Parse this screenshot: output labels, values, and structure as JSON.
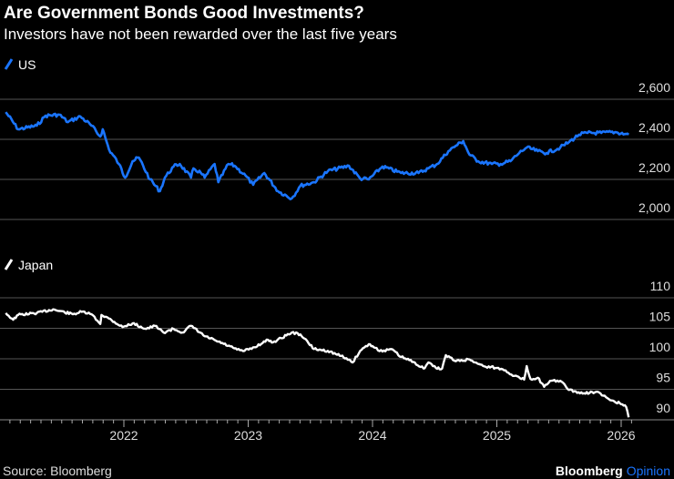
{
  "chart_data": [
    {
      "type": "line",
      "title": "Are Government Bonds Good Investments?",
      "subtitle": "Investors have not been rewarded over the last five years",
      "legend": "US",
      "color": "#1a75ff",
      "ylim": [
        2000,
        2600
      ],
      "yticks": [
        "2,000",
        "2,200",
        "2,400",
        "2,600"
      ],
      "ytick_values": [
        2000,
        2200,
        2400,
        2600
      ],
      "x": [
        2021.05,
        2021.15,
        2021.3,
        2021.37,
        2021.48,
        2021.55,
        2021.65,
        2021.74,
        2021.81,
        2021.83,
        2021.88,
        2021.96,
        2022.01,
        2022.07,
        2022.12,
        2022.21,
        2022.29,
        2022.33,
        2022.4,
        2022.45,
        2022.54,
        2022.56,
        2022.62,
        2022.65,
        2022.73,
        2022.76,
        2022.84,
        2022.89,
        2022.98,
        2023.04,
        2023.13,
        2023.24,
        2023.35,
        2023.42,
        2023.53,
        2023.64,
        2023.81,
        2023.9,
        2023.97,
        2024.08,
        2024.23,
        2024.37,
        2024.45,
        2024.52,
        2024.61,
        2024.67,
        2024.73,
        2024.78,
        2024.85,
        2024.96,
        2025.03,
        2025.11,
        2025.18,
        2025.24,
        2025.33,
        2025.4,
        2025.51,
        2025.58,
        2025.66,
        2025.73,
        2025.84,
        2025.95,
        2026.03,
        2026.06
      ],
      "values": [
        2536,
        2450,
        2468,
        2518,
        2523,
        2486,
        2514,
        2468,
        2414,
        2450,
        2350,
        2277,
        2209,
        2291,
        2309,
        2200,
        2141,
        2209,
        2264,
        2277,
        2209,
        2255,
        2232,
        2209,
        2277,
        2186,
        2277,
        2268,
        2218,
        2173,
        2232,
        2141,
        2105,
        2168,
        2186,
        2241,
        2268,
        2205,
        2200,
        2264,
        2232,
        2232,
        2255,
        2277,
        2341,
        2368,
        2391,
        2323,
        2291,
        2277,
        2277,
        2291,
        2332,
        2359,
        2341,
        2332,
        2359,
        2386,
        2423,
        2432,
        2432,
        2436,
        2427,
        2423
      ]
    },
    {
      "type": "line",
      "legend": "Japan",
      "color": "#ffffff",
      "ylim": [
        90,
        110
      ],
      "yticks": [
        "90",
        "95",
        "100",
        "105",
        "110"
      ],
      "ytick_values": [
        90,
        95,
        100,
        105,
        110
      ],
      "xticks": [
        "2022",
        "2023",
        "2024",
        "2025",
        "2026"
      ],
      "xtick_values": [
        2022,
        2023,
        2024,
        2025,
        2026
      ],
      "x": [
        2021.05,
        2021.11,
        2021.15,
        2021.3,
        2021.43,
        2021.59,
        2021.66,
        2021.74,
        2021.81,
        2021.82,
        2021.88,
        2021.99,
        2022.07,
        2022.18,
        2022.25,
        2022.32,
        2022.4,
        2022.47,
        2022.54,
        2022.65,
        2022.76,
        2022.91,
        2022.97,
        2023.05,
        2023.16,
        2023.2,
        2023.35,
        2023.42,
        2023.53,
        2023.64,
        2023.79,
        2023.84,
        2023.9,
        2023.97,
        2024.02,
        2024.08,
        2024.15,
        2024.23,
        2024.34,
        2024.41,
        2024.45,
        2024.51,
        2024.56,
        2024.59,
        2024.67,
        2024.78,
        2024.89,
        2025.0,
        2025.07,
        2025.14,
        2025.22,
        2025.24,
        2025.27,
        2025.33,
        2025.38,
        2025.44,
        2025.51,
        2025.58,
        2025.69,
        2025.8,
        2025.9,
        2025.99,
        2026.04,
        2026.06
      ],
      "values": [
        107.5,
        106.4,
        107.2,
        107.5,
        108.1,
        107.3,
        107.7,
        107.3,
        105.7,
        107.2,
        106.6,
        105.2,
        105.8,
        104.9,
        105.4,
        104.3,
        104.9,
        104.3,
        105.4,
        103.7,
        102.8,
        101.5,
        101.3,
        101.9,
        103.1,
        102.7,
        104.3,
        104.0,
        101.6,
        101.3,
        100.1,
        99.4,
        101.3,
        102.4,
        101.8,
        101.2,
        101.6,
        100.3,
        99.4,
        98.4,
        99.4,
        98.5,
        98.4,
        100.6,
        99.6,
        99.9,
        98.8,
        98.5,
        98.1,
        97.2,
        96.6,
        98.8,
        96.7,
        96.9,
        95.4,
        96.4,
        96.4,
        94.9,
        94.3,
        94.6,
        93.4,
        92.7,
        92.1,
        90.4
      ]
    }
  ],
  "footer": {
    "source": "Source: Bloomberg",
    "brand": "Bloomberg",
    "brand_accent": "Opinion",
    "accent_color": "#1a75ff"
  }
}
